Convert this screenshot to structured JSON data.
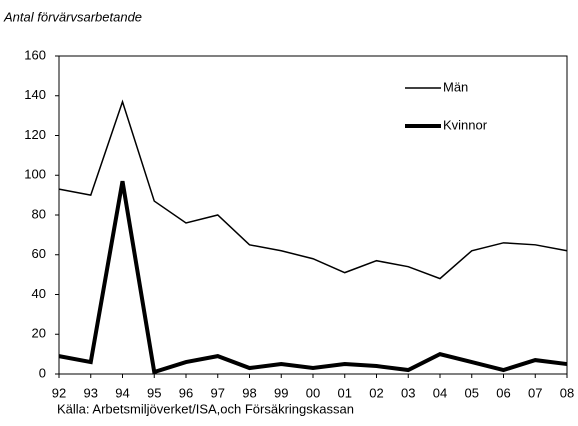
{
  "chart_data": {
    "type": "line",
    "title": "Antal förvärvsarbetande",
    "source": "Källa: Arbetsmiljöverket/ISA,och Försäkringskassan",
    "categories": [
      "92",
      "93",
      "94",
      "95",
      "96",
      "97",
      "98",
      "99",
      "00",
      "01",
      "02",
      "03",
      "04",
      "05",
      "06",
      "07",
      "08"
    ],
    "series": [
      {
        "name": "Män",
        "color": "#000000",
        "line_width": 1.5,
        "values": [
          93,
          90,
          137,
          87,
          76,
          80,
          65,
          62,
          58,
          51,
          57,
          54,
          48,
          62,
          66,
          65,
          62
        ]
      },
      {
        "name": "Kvinnor",
        "color": "#000000",
        "line_width": 4,
        "values": [
          9,
          6,
          97,
          1,
          6,
          9,
          3,
          5,
          3,
          5,
          4,
          2,
          10,
          6,
          2,
          7,
          5
        ]
      }
    ],
    "ylim": [
      0,
      160
    ],
    "yticks": [
      0,
      20,
      40,
      60,
      80,
      100,
      120,
      140,
      160
    ],
    "grid": false
  }
}
